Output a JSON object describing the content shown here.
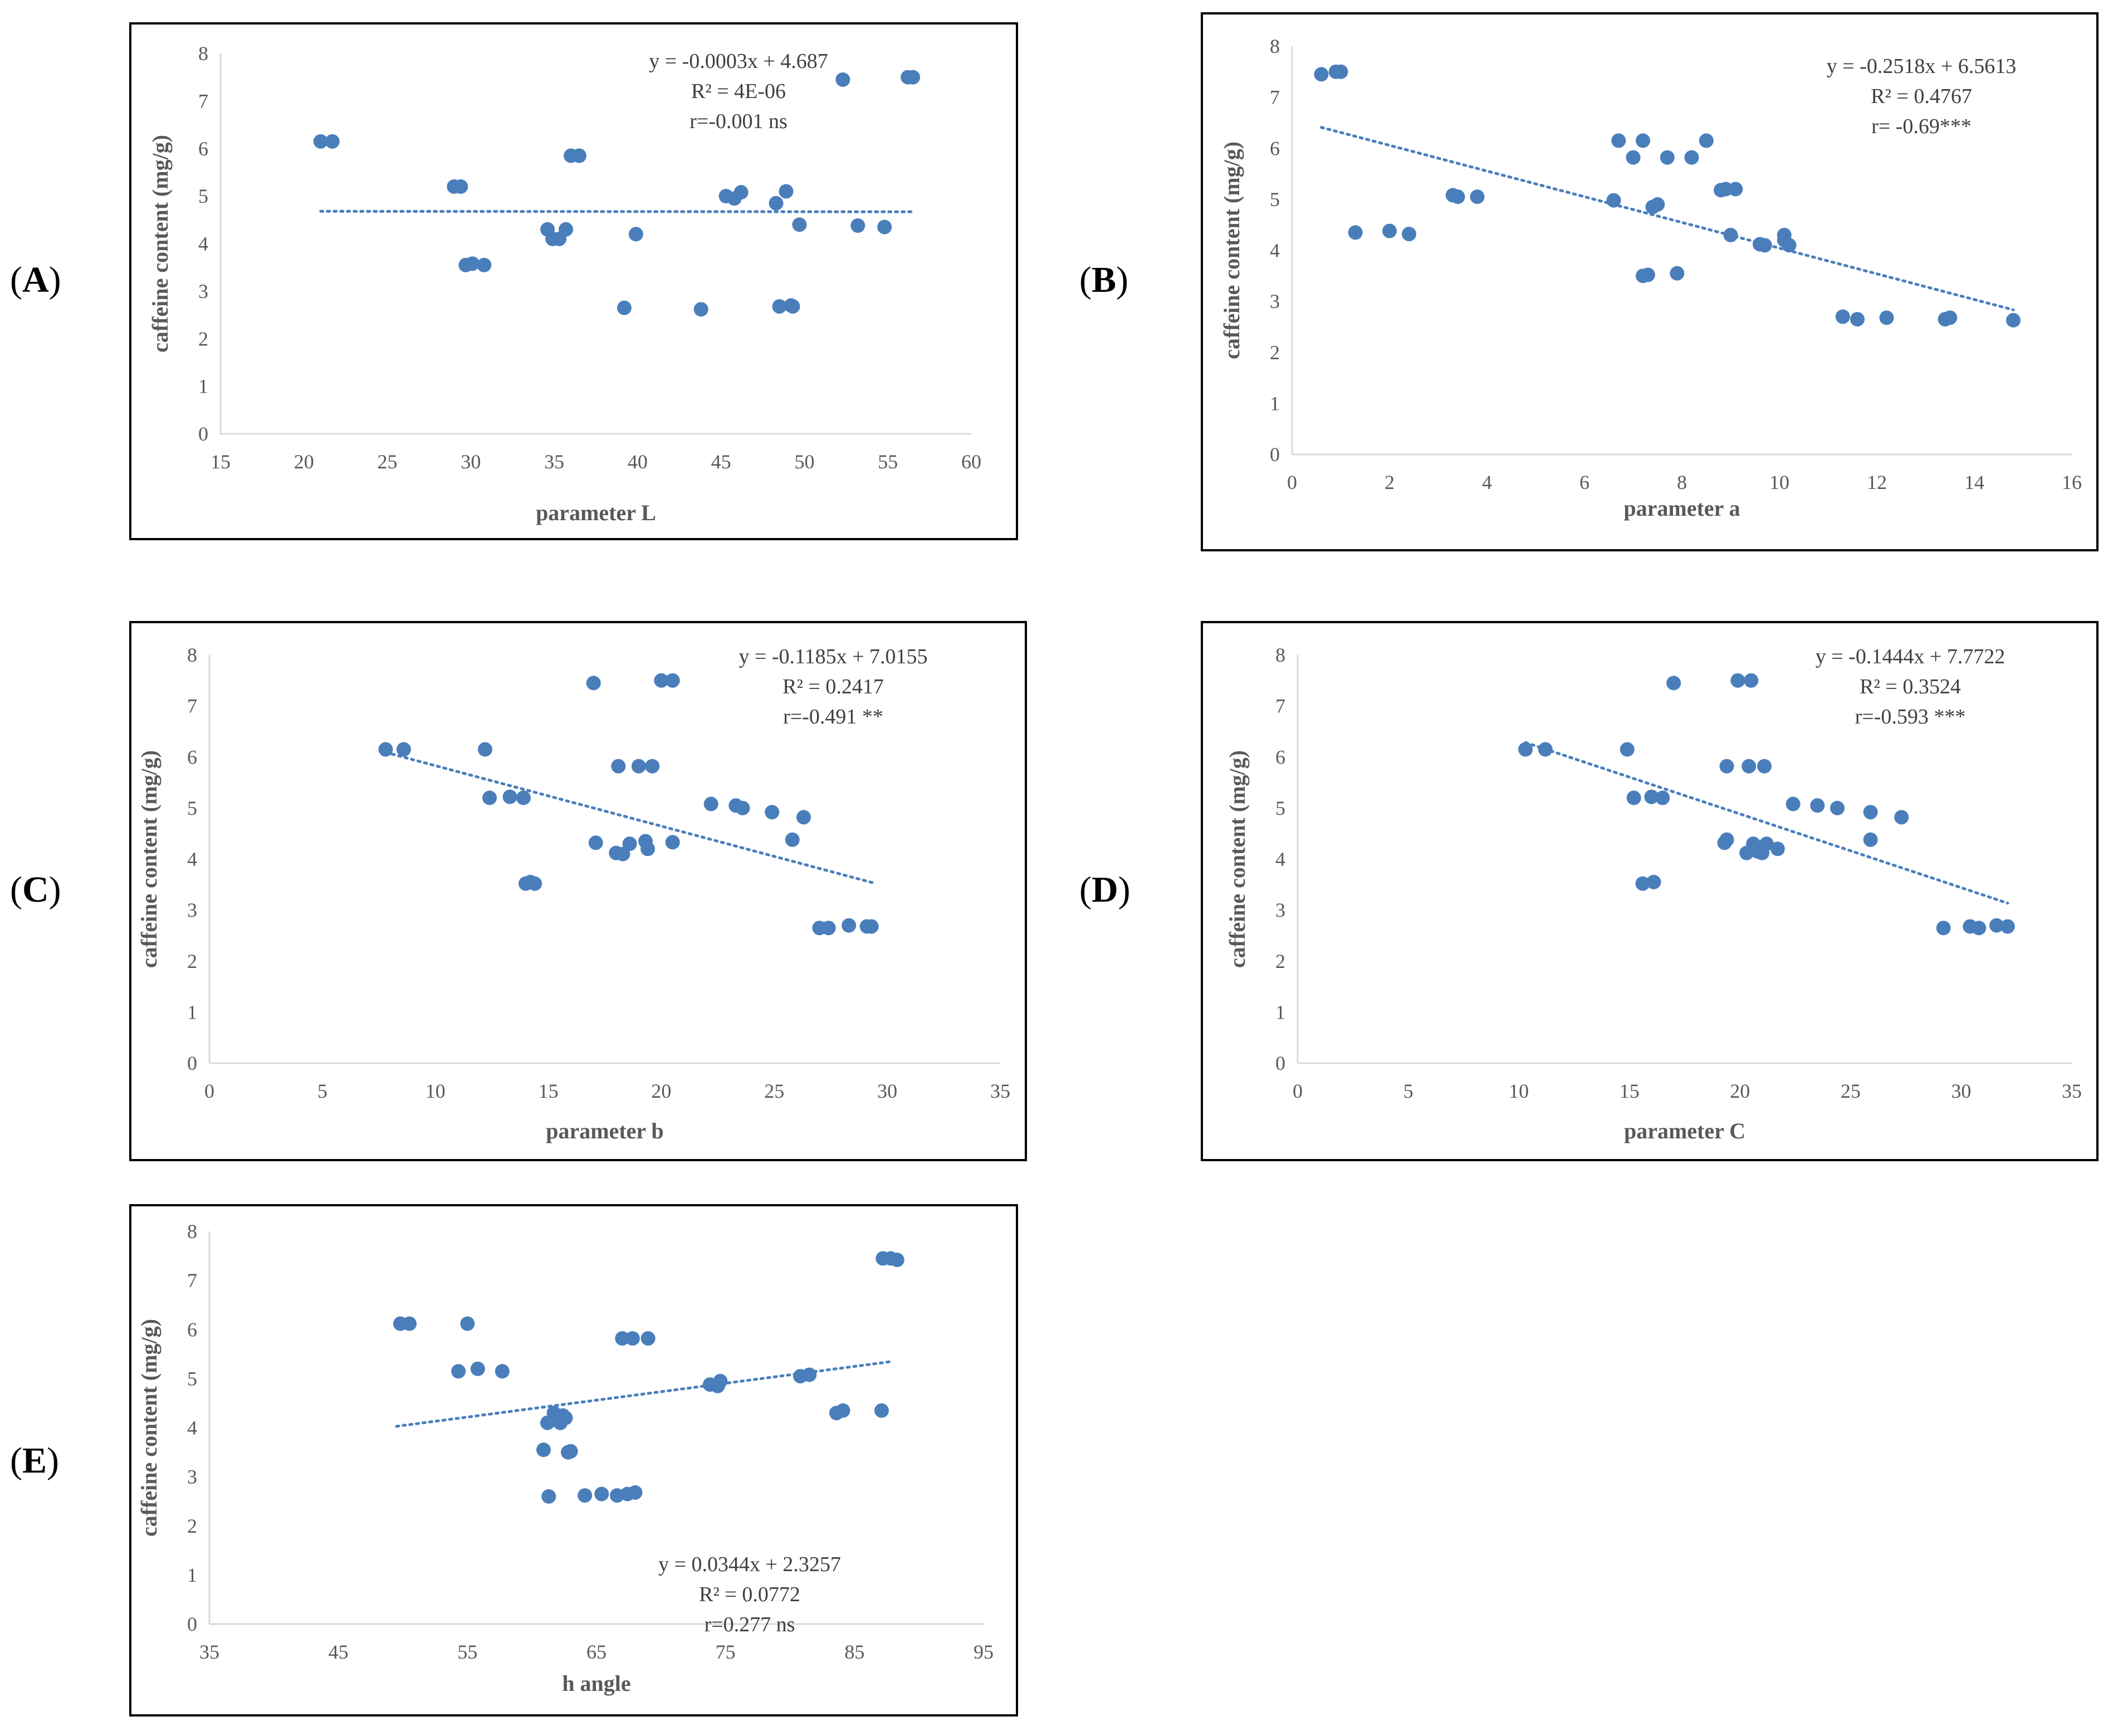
{
  "colors": {
    "marker": "#4a7ebb",
    "trendline": "#4a7ebb",
    "axis": "#d9d9d9",
    "text": "#595959"
  },
  "chart_data": [
    {
      "id": "A",
      "panel_label": "A",
      "type": "scatter",
      "xlabel": "parameter L",
      "ylabel": "caffeine content (mg/g)",
      "xlim": [
        15,
        60
      ],
      "ylim": [
        0,
        8
      ],
      "xticks": [
        15,
        20,
        25,
        30,
        35,
        40,
        45,
        50,
        55,
        60
      ],
      "yticks": [
        0,
        1,
        2,
        3,
        4,
        5,
        6,
        7,
        8
      ],
      "grid": false,
      "legend": "none",
      "annotations": [
        "y = -0.0003x + 4.687",
        "R² = 4E-06",
        "r=-0.001 ns"
      ],
      "trendline": {
        "slope": -0.0003,
        "intercept": 4.687,
        "x_range": [
          21,
          56.5
        ]
      },
      "x": [
        21,
        21.7,
        29,
        29.4,
        29.7,
        30.1,
        30.8,
        34.6,
        34.9,
        35.3,
        35.7,
        36,
        36.5,
        39.2,
        39.9,
        43.8,
        45.3,
        45.8,
        46.2,
        48.3,
        48.5,
        48.9,
        49.2,
        49.3,
        49.7,
        52.3,
        53.2,
        54.8,
        56.2,
        56.5
      ],
      "y": [
        6.15,
        6.15,
        5.2,
        5.2,
        3.55,
        3.58,
        3.55,
        4.3,
        4.1,
        4.1,
        4.3,
        5.85,
        5.85,
        2.65,
        4.2,
        2.62,
        5.0,
        4.95,
        5.08,
        4.85,
        2.68,
        5.1,
        2.7,
        2.68,
        4.4,
        7.45,
        4.38,
        4.35,
        7.5,
        7.5
      ]
    },
    {
      "id": "B",
      "panel_label": "B",
      "type": "scatter",
      "xlabel": "parameter a",
      "ylabel": "caffeine content (mg/g)",
      "xlim": [
        0,
        16
      ],
      "ylim": [
        0,
        8
      ],
      "xticks": [
        0,
        2,
        4,
        6,
        8,
        10,
        12,
        14,
        16
      ],
      "yticks": [
        0,
        1,
        2,
        3,
        4,
        5,
        6,
        7,
        8
      ],
      "grid": false,
      "legend": "none",
      "annotations": [
        "y = -0.2518x + 6.5613",
        "R² = 0.4767",
        "r= -0.69***"
      ],
      "trendline": {
        "slope": -0.2518,
        "intercept": 6.5613,
        "x_range": [
          0.6,
          14.8
        ]
      },
      "x": [
        0.6,
        0.9,
        1.0,
        1.3,
        2.0,
        2.4,
        3.3,
        3.4,
        3.8,
        6.6,
        6.7,
        7.0,
        7.2,
        7.2,
        7.3,
        7.4,
        7.5,
        7.7,
        7.9,
        8.2,
        8.5,
        8.8,
        8.9,
        9.0,
        9.1,
        9.6,
        9.7,
        10.1,
        10.1,
        10.2,
        11.3,
        11.6,
        12.2,
        13.4,
        13.5,
        14.8
      ],
      "y": [
        7.45,
        7.5,
        7.5,
        4.35,
        4.38,
        4.32,
        5.08,
        5.05,
        5.05,
        4.98,
        6.15,
        5.82,
        6.15,
        3.5,
        3.52,
        4.85,
        4.9,
        5.82,
        3.55,
        5.82,
        6.15,
        5.18,
        5.2,
        4.3,
        5.2,
        4.12,
        4.1,
        4.3,
        4.2,
        4.1,
        2.7,
        2.65,
        2.68,
        2.65,
        2.68,
        2.63
      ]
    },
    {
      "id": "C",
      "panel_label": "C",
      "type": "scatter",
      "xlabel": "parameter b",
      "ylabel": "caffeine content (mg/g)",
      "xlim": [
        0,
        35
      ],
      "ylim": [
        0,
        8
      ],
      "xticks": [
        0,
        5,
        10,
        15,
        20,
        25,
        30,
        35
      ],
      "yticks": [
        0,
        1,
        2,
        3,
        4,
        5,
        6,
        7,
        8
      ],
      "grid": false,
      "legend": "none",
      "annotations": [
        "y = -0.1185x + 7.0155",
        "R² = 0.2417",
        "r=-0.491 **"
      ],
      "trendline": {
        "slope": -0.1185,
        "intercept": 7.0155,
        "x_range": [
          7.8,
          29.5
        ]
      },
      "x": [
        7.8,
        8.6,
        12.2,
        12.4,
        13.3,
        13.9,
        14.0,
        14.2,
        14.4,
        17.0,
        17.1,
        18.0,
        18.1,
        18.3,
        18.6,
        19.0,
        19.3,
        19.4,
        19.6,
        20.0,
        20.5,
        20.5,
        22.2,
        23.3,
        23.6,
        24.9,
        25.8,
        26.3,
        27.0,
        27.4,
        28.3,
        29.1,
        29.3
      ],
      "y": [
        6.15,
        6.15,
        6.15,
        5.2,
        5.22,
        5.2,
        3.52,
        3.55,
        3.52,
        7.45,
        4.32,
        4.12,
        5.82,
        4.1,
        4.3,
        5.82,
        4.35,
        4.2,
        5.82,
        7.5,
        7.5,
        4.33,
        5.08,
        5.05,
        5.0,
        4.92,
        4.38,
        4.82,
        2.65,
        2.65,
        2.7,
        2.68,
        2.68
      ]
    },
    {
      "id": "D",
      "panel_label": "D",
      "type": "scatter",
      "xlabel": "parameter C",
      "ylabel": "caffeine content (mg/g)",
      "xlim": [
        0,
        35
      ],
      "ylim": [
        0,
        8
      ],
      "xticks": [
        0,
        5,
        10,
        15,
        20,
        25,
        30,
        35
      ],
      "yticks": [
        0,
        1,
        2,
        3,
        4,
        5,
        6,
        7,
        8
      ],
      "grid": false,
      "legend": "none",
      "annotations": [
        "y = -0.1444x + 7.7722",
        "R² = 0.3524",
        "r=-0.593 ***"
      ],
      "trendline": {
        "slope": -0.1444,
        "intercept": 7.7722,
        "x_range": [
          10.3,
          32.1
        ]
      },
      "x": [
        10.3,
        11.2,
        14.9,
        15.2,
        15.6,
        16.0,
        16.1,
        16.5,
        17.0,
        19.3,
        19.4,
        19.4,
        19.9,
        20.3,
        20.4,
        20.5,
        20.6,
        20.8,
        21.0,
        21.1,
        21.2,
        21.7,
        22.4,
        23.5,
        24.4,
        25.9,
        25.9,
        27.3,
        29.2,
        30.4,
        30.8,
        31.6,
        32.1
      ],
      "y": [
        6.15,
        6.15,
        6.15,
        5.2,
        3.52,
        5.22,
        3.55,
        5.2,
        7.45,
        4.32,
        4.38,
        5.82,
        7.5,
        4.12,
        5.82,
        7.5,
        4.3,
        4.15,
        4.12,
        5.82,
        4.3,
        4.2,
        5.08,
        5.05,
        5.0,
        4.92,
        4.38,
        4.82,
        2.65,
        2.68,
        2.65,
        2.7,
        2.68
      ]
    },
    {
      "id": "E",
      "panel_label": "E",
      "type": "scatter",
      "xlabel": "h angle",
      "ylabel": "caffeine content (mg/g)",
      "xlim": [
        35,
        95
      ],
      "ylim": [
        0,
        8
      ],
      "xticks": [
        35,
        45,
        55,
        65,
        75,
        85,
        95
      ],
      "yticks": [
        0,
        1,
        2,
        3,
        4,
        5,
        6,
        7,
        8
      ],
      "grid": false,
      "legend": "none",
      "annotations": [
        "y = 0.0344x + 2.3257",
        "R² = 0.0772",
        "r=0.277 ns"
      ],
      "trendline": {
        "slope": 0.0344,
        "intercept": 2.3257,
        "x_range": [
          49.5,
          88
        ]
      },
      "x": [
        49.8,
        50.5,
        54.3,
        55.0,
        55.8,
        57.7,
        60.9,
        61.2,
        61.3,
        61.7,
        61.9,
        62.2,
        62.4,
        62.6,
        62.8,
        63.0,
        64.1,
        65.4,
        66.6,
        67.0,
        67.4,
        67.8,
        68.0,
        69.0,
        73.8,
        74.4,
        74.6,
        80.8,
        81.5,
        83.6,
        84.1,
        87.1,
        87.2,
        87.8,
        88.3
      ],
      "y": [
        6.12,
        6.12,
        5.15,
        6.12,
        5.2,
        5.15,
        3.55,
        4.1,
        2.6,
        4.3,
        4.15,
        4.1,
        4.25,
        4.2,
        3.5,
        3.52,
        2.62,
        2.65,
        2.62,
        5.82,
        2.65,
        5.82,
        2.68,
        5.82,
        4.88,
        4.85,
        4.95,
        5.05,
        5.08,
        4.3,
        4.35,
        4.35,
        7.45,
        7.45,
        7.42
      ]
    }
  ]
}
